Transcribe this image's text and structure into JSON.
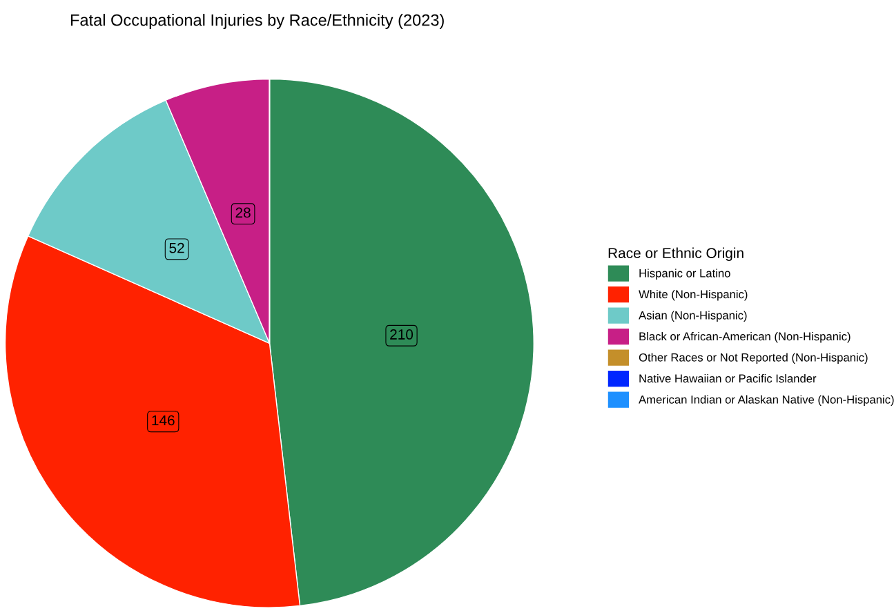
{
  "chart_data": {
    "type": "pie",
    "title": "Fatal Occupational Injuries by Race/Ethnicity (2023)",
    "legend_title": "Race or Ethnic Origin",
    "categories": [
      "Hispanic or Latino",
      "White (Non-Hispanic)",
      "Asian (Non-Hispanic)",
      "Black or African-American (Non-Hispanic)",
      "Other Races or Not Reported (Non-Hispanic)",
      "Native Hawaiian or Pacific Islander",
      "American Indian or Alaskan Native (Non-Hispanic)"
    ],
    "values": [
      210,
      146,
      52,
      28,
      0,
      0,
      0
    ],
    "colors": [
      "#2e8b57",
      "#ff2200",
      "#6ecac8",
      "#c71f86",
      "#c48f2a",
      "#0026ff",
      "#1e90ff"
    ],
    "data_labels": true,
    "legend": "right"
  }
}
